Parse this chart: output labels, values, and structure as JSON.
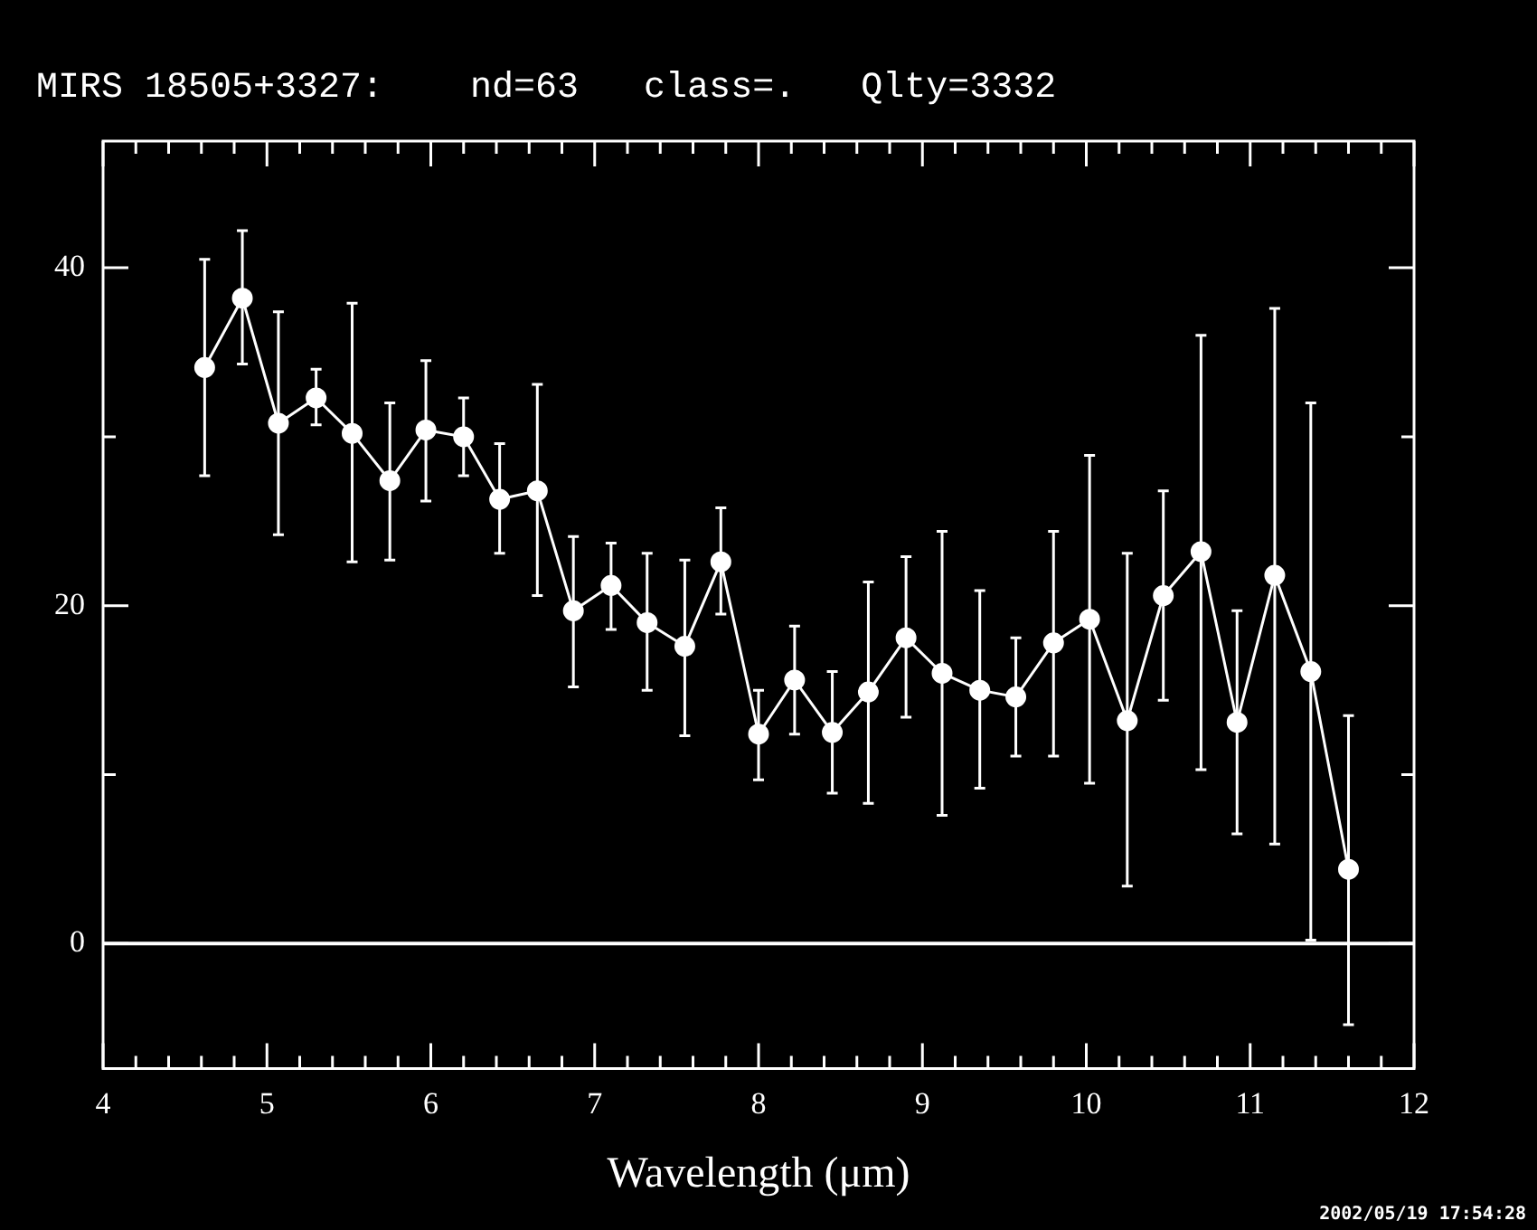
{
  "chart_data": {
    "type": "line",
    "title": "MIRS 18505+3327:    nd=63   class=.   Qlty=3332",
    "xlabel": "Wavelength (μm)",
    "annotations": [
      "2002/05/19 17:54:28"
    ],
    "x": [
      4.62,
      4.85,
      5.07,
      5.3,
      5.52,
      5.75,
      5.97,
      6.2,
      6.42,
      6.65,
      6.87,
      7.1,
      7.32,
      7.55,
      7.77,
      8.0,
      8.22,
      8.45,
      8.67,
      8.9,
      9.12,
      9.35,
      9.57,
      9.8,
      10.02,
      10.25,
      10.47,
      10.7,
      10.92,
      11.15,
      11.37,
      11.6
    ],
    "series": [
      {
        "color": "#ffffff",
        "values": [
          34.1,
          38.2,
          30.8,
          32.3,
          30.2,
          27.4,
          30.4,
          30.0,
          26.3,
          26.8,
          19.7,
          21.2,
          19.0,
          17.6,
          22.6,
          12.4,
          15.6,
          12.5,
          14.9,
          18.1,
          16.0,
          15.0,
          14.6,
          17.8,
          19.2,
          13.2,
          20.6,
          23.2,
          13.1,
          21.8,
          16.1,
          4.4
        ],
        "errors": [
          [
            27.7,
            40.5
          ],
          [
            34.3,
            42.2
          ],
          [
            24.2,
            37.4
          ],
          [
            30.7,
            34.0
          ],
          [
            22.6,
            37.9
          ],
          [
            22.7,
            32.0
          ],
          [
            26.2,
            34.5
          ],
          [
            27.7,
            32.3
          ],
          [
            23.1,
            29.6
          ],
          [
            20.6,
            33.1
          ],
          [
            15.2,
            24.1
          ],
          [
            18.6,
            23.7
          ],
          [
            15.0,
            23.1
          ],
          [
            12.3,
            22.7
          ],
          [
            19.5,
            25.8
          ],
          [
            9.7,
            15.0
          ],
          [
            12.4,
            18.8
          ],
          [
            8.9,
            16.1
          ],
          [
            8.3,
            21.4
          ],
          [
            13.4,
            22.9
          ],
          [
            7.6,
            24.4
          ],
          [
            9.2,
            20.9
          ],
          [
            11.1,
            18.1
          ],
          [
            11.1,
            24.4
          ],
          [
            9.5,
            28.9
          ],
          [
            3.4,
            23.1
          ],
          [
            14.4,
            26.8
          ],
          [
            10.3,
            36.0
          ],
          [
            6.5,
            19.7
          ],
          [
            5.9,
            37.6
          ],
          [
            0.2,
            32.0
          ],
          [
            -4.8,
            13.5
          ]
        ]
      }
    ],
    "xlim": [
      4,
      12
    ],
    "xticks": [
      4,
      {
        "value": 4.2,
        "label": null
      },
      {
        "value": 4.4,
        "label": null
      },
      {
        "value": 4.6,
        "label": null
      },
      {
        "value": 4.8,
        "label": null
      },
      5,
      {
        "value": 5.2,
        "label": null
      },
      {
        "value": 5.4,
        "label": null
      },
      {
        "value": 5.6,
        "label": null
      },
      {
        "value": 5.8,
        "label": null
      },
      6,
      {
        "value": 6.2,
        "label": null
      },
      {
        "value": 6.4,
        "label": null
      },
      {
        "value": 6.6,
        "label": null
      },
      {
        "value": 6.8,
        "label": null
      },
      7,
      {
        "value": 7.2,
        "label": null
      },
      {
        "value": 7.4,
        "label": null
      },
      {
        "value": 7.6,
        "label": null
      },
      {
        "value": 7.8,
        "label": null
      },
      8,
      {
        "value": 8.2,
        "label": null
      },
      {
        "value": 8.4,
        "label": null
      },
      {
        "value": 8.6,
        "label": null
      },
      {
        "value": 8.8,
        "label": null
      },
      9,
      {
        "value": 9.2,
        "label": null
      },
      {
        "value": 9.4,
        "label": null
      },
      {
        "value": 9.6,
        "label": null
      },
      {
        "value": 9.8,
        "label": null
      },
      10,
      {
        "value": 10.2,
        "label": null
      },
      {
        "value": 10.4,
        "label": null
      },
      {
        "value": 10.6,
        "label": null
      },
      {
        "value": 10.8,
        "label": null
      },
      11,
      {
        "value": 11.2,
        "label": null
      },
      {
        "value": 11.4,
        "label": null
      },
      {
        "value": 11.6,
        "label": null
      },
      {
        "value": 11.8,
        "label": null
      },
      12
    ],
    "ylim": [
      -7.4,
      47.5
    ],
    "yticks": [
      0,
      {
        "value": 10,
        "label": null
      },
      20,
      {
        "value": 30,
        "label": null
      },
      40
    ],
    "ref_lines": [
      {
        "axis": "y",
        "value": 0,
        "color": "#ffffff"
      }
    ],
    "grid": false,
    "legend": false,
    "marker": "circle",
    "line_style": "solid"
  }
}
